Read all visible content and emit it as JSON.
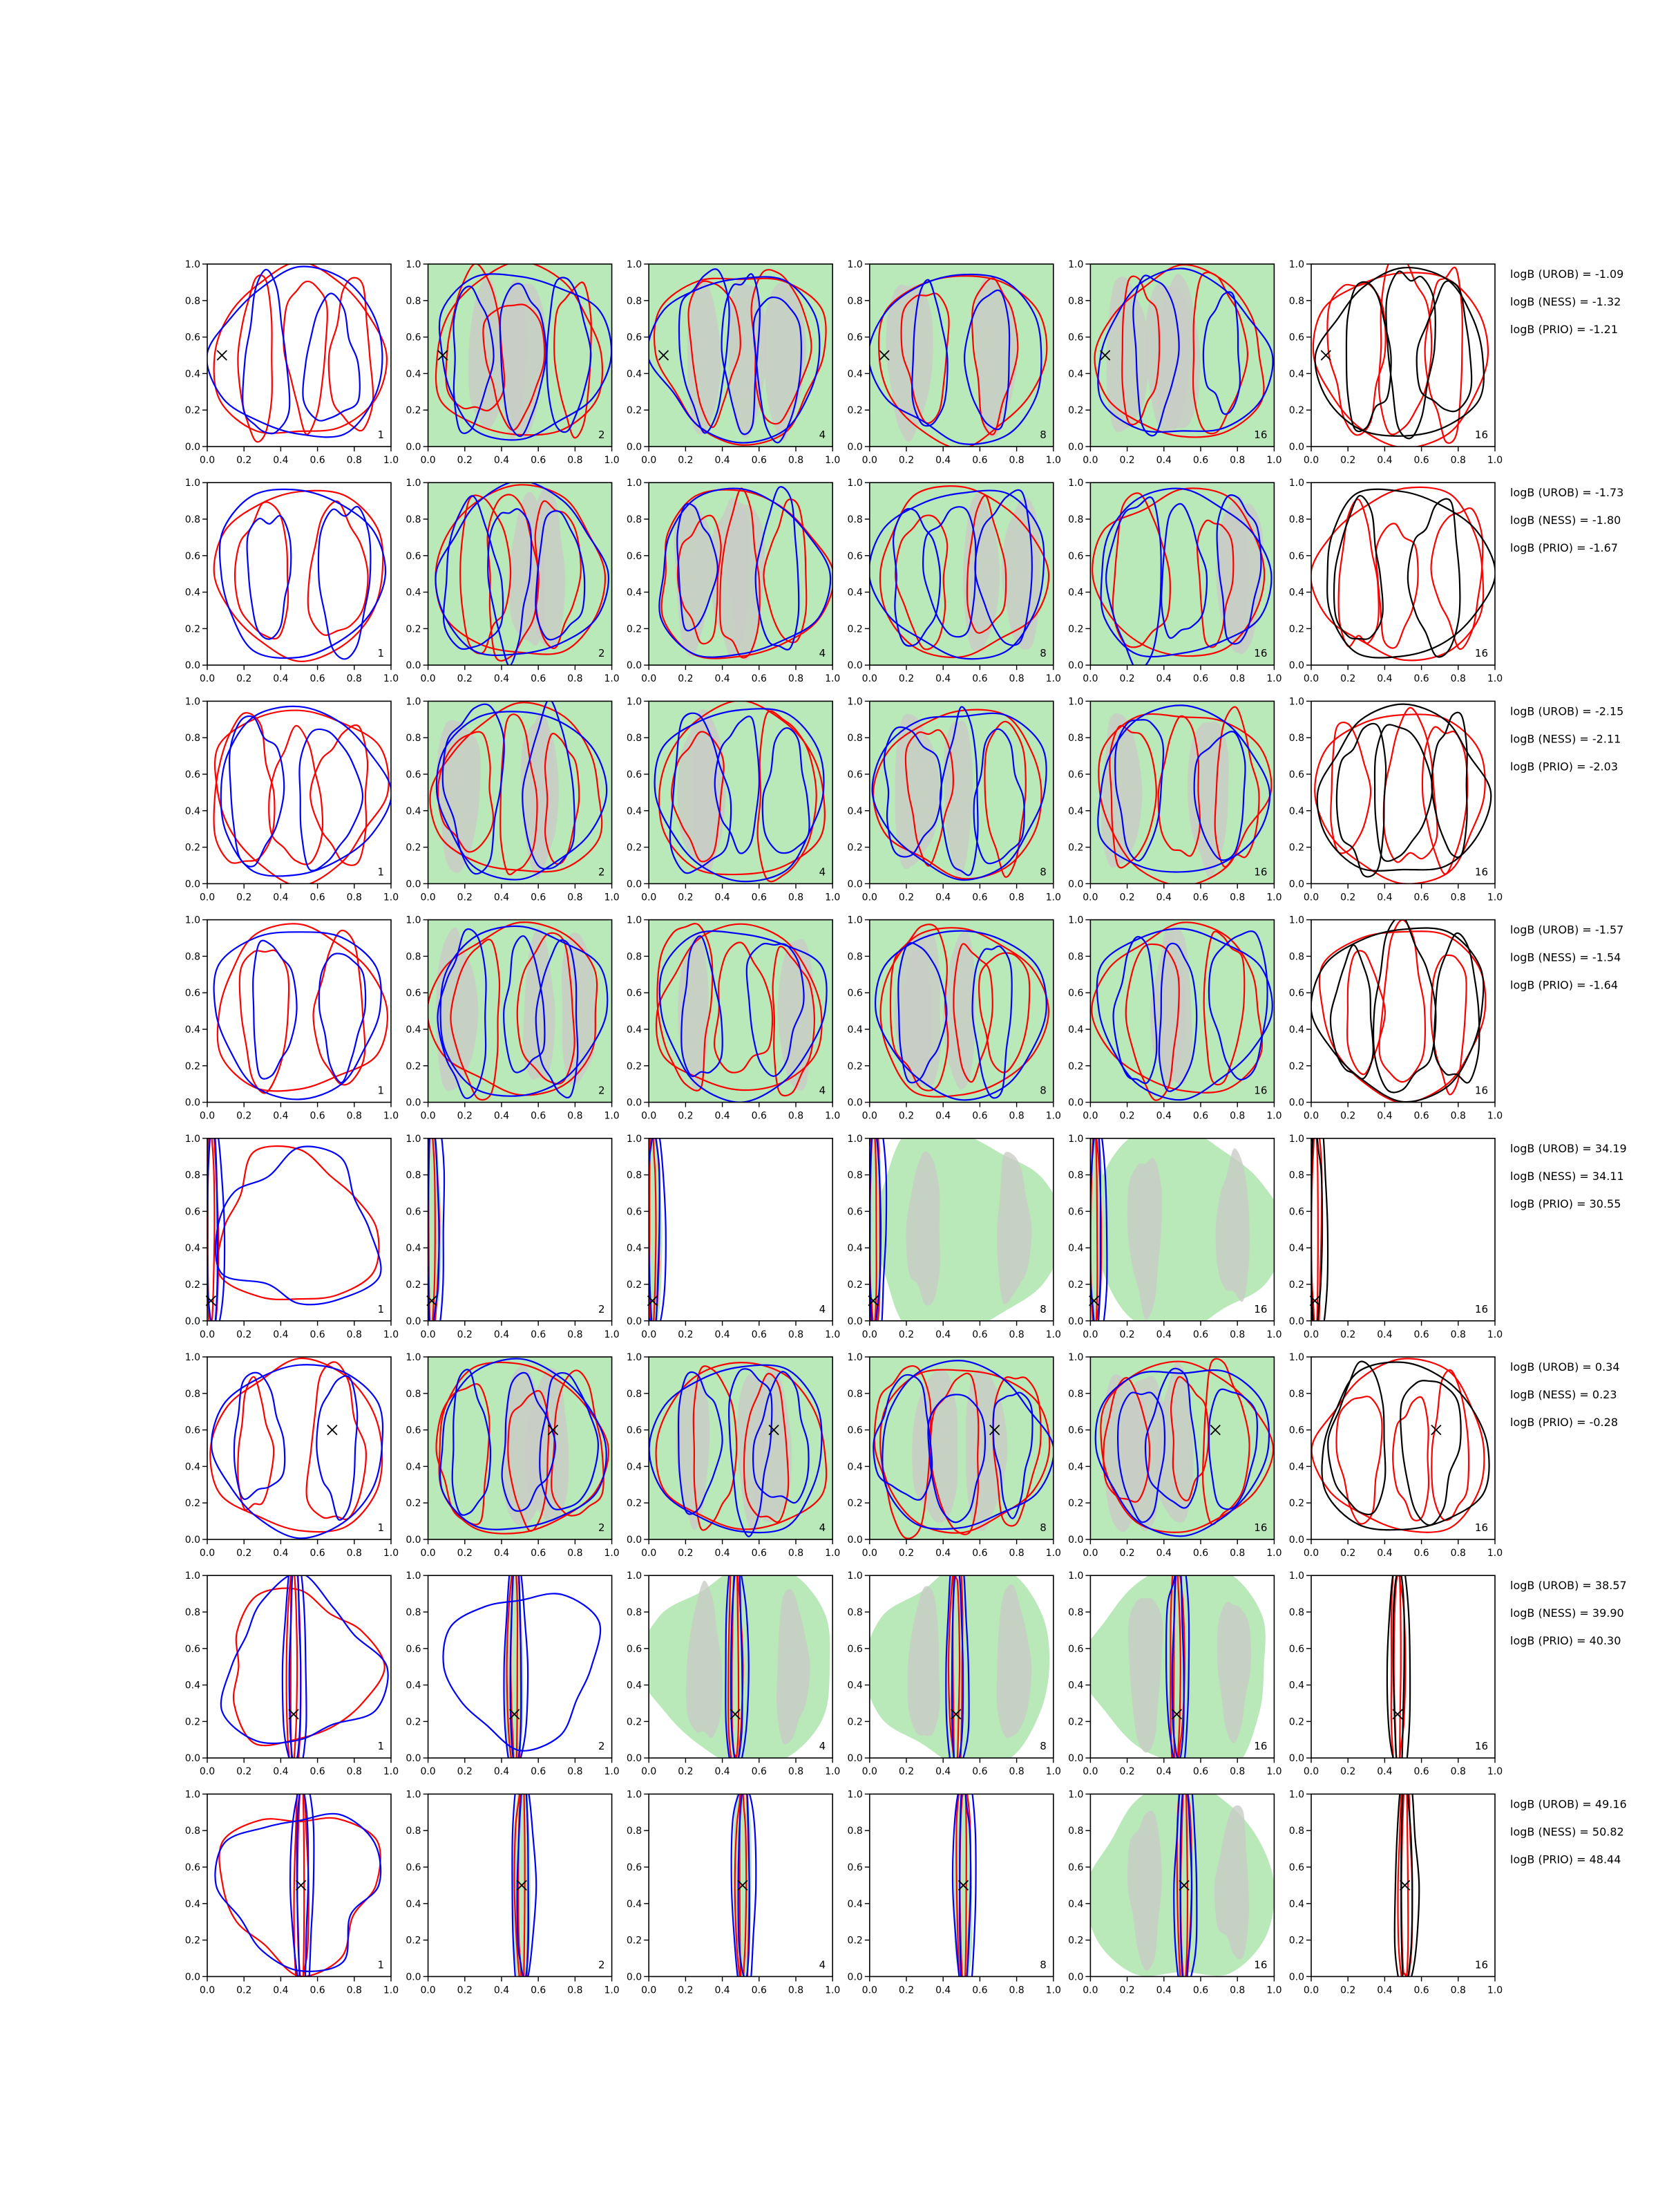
{
  "figure": {
    "rows": 8,
    "columns": 6,
    "colors": {
      "red": "#ff0000",
      "blue": "#0000ff",
      "black": "#000000",
      "green_fill": "#b9e8b9",
      "grey_fill": "#c8ccc6"
    }
  },
  "chart_data": {
    "type": "contour",
    "xlim": [
      0.0,
      1.0
    ],
    "ylim": [
      0.0,
      1.0
    ],
    "xticks": [
      "0.0",
      "0.2",
      "0.4",
      "0.6",
      "0.8",
      "1.0"
    ],
    "yticks": [
      "0.0",
      "0.2",
      "0.4",
      "0.6",
      "0.8",
      "1.0"
    ],
    "grid": false,
    "column_counts": [
      "1",
      "2",
      "4",
      "8",
      "16",
      "16"
    ],
    "column_styles": [
      {
        "green_fill": false,
        "contours": [
          "red",
          "blue"
        ]
      },
      {
        "green_fill": true,
        "contours": [
          "red",
          "blue"
        ]
      },
      {
        "green_fill": true,
        "contours": [
          "red",
          "blue"
        ]
      },
      {
        "green_fill": true,
        "contours": [
          "red",
          "blue"
        ]
      },
      {
        "green_fill": true,
        "contours": [
          "red",
          "blue"
        ]
      },
      {
        "green_fill": false,
        "contours": [
          "red",
          "black"
        ]
      }
    ],
    "rows": [
      {
        "marker": [
          0.08,
          0.5
        ],
        "pattern": "spread",
        "logB": [
          "logB (UROB) = -1.09",
          "logB (NESS) = -1.32",
          "logB (PRIO) = -1.21"
        ]
      },
      {
        "marker": null,
        "pattern": "spread",
        "logB": [
          "logB (UROB) = -1.73",
          "logB (NESS) = -1.80",
          "logB (PRIO) = -1.67"
        ]
      },
      {
        "marker": null,
        "pattern": "spread",
        "logB": [
          "logB (UROB) = -2.15",
          "logB (NESS) = -2.11",
          "logB (PRIO) = -2.03"
        ]
      },
      {
        "marker": null,
        "pattern": "spread",
        "logB": [
          "logB (UROB) = -1.57",
          "logB (NESS) = -1.54",
          "logB (PRIO) = -1.64"
        ]
      },
      {
        "marker": [
          0.02,
          0.11
        ],
        "pattern": "concentrated",
        "logB": [
          "logB (UROB) = 34.19",
          "logB (NESS) = 34.11",
          "logB (PRIO) = 30.55"
        ]
      },
      {
        "marker": [
          0.68,
          0.6
        ],
        "pattern": "spread",
        "logB": [
          "logB (UROB) = 0.34",
          "logB (NESS) = 0.23",
          "logB (PRIO) = -0.28"
        ]
      },
      {
        "marker": [
          0.47,
          0.24
        ],
        "pattern": "concentrated",
        "logB": [
          "logB (UROB) = 38.57",
          "logB (NESS) = 39.90",
          "logB (PRIO) = 40.30"
        ]
      },
      {
        "marker": [
          0.51,
          0.5
        ],
        "pattern": "concentrated",
        "logB": [
          "logB (UROB) = 49.16",
          "logB (NESS) = 50.82",
          "logB (PRIO) = 48.44"
        ]
      }
    ]
  }
}
